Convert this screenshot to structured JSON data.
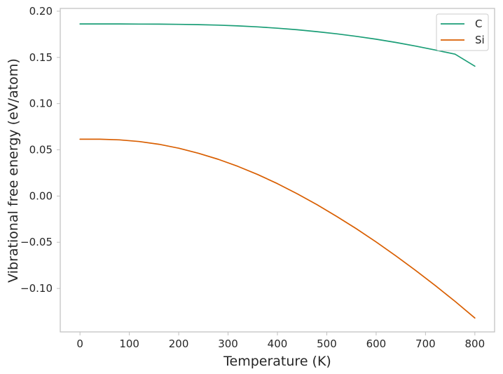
{
  "chart_data": {
    "type": "line",
    "xlabel": "Temperature (K)",
    "ylabel": "Vibrational free energy (eV/atom)",
    "xlim": [
      -40,
      840
    ],
    "ylim": [
      -0.147,
      0.203
    ],
    "xticks": [
      0,
      100,
      200,
      300,
      400,
      500,
      600,
      700,
      800
    ],
    "xtick_labels": [
      "0",
      "100",
      "200",
      "300",
      "400",
      "500",
      "600",
      "700",
      "800"
    ],
    "yticks": [
      -0.1,
      -0.05,
      0.0,
      0.05,
      0.1,
      0.15,
      0.2
    ],
    "ytick_labels": [
      "−0.10",
      "−0.05",
      "0.00",
      "0.05",
      "0.10",
      "0.15",
      "0.20"
    ],
    "grid": false,
    "legend_position": "top-right",
    "x": [
      0,
      40,
      80,
      120,
      160,
      200,
      240,
      280,
      320,
      360,
      400,
      440,
      480,
      520,
      560,
      600,
      640,
      680,
      720,
      760,
      800
    ],
    "series": [
      {
        "name": "C",
        "color": "#1b9e77",
        "values": [
          0.1862,
          0.1862,
          0.1862,
          0.1861,
          0.186,
          0.1858,
          0.1855,
          0.1849,
          0.1841,
          0.183,
          0.1816,
          0.1799,
          0.1779,
          0.1755,
          0.1728,
          0.1697,
          0.1662,
          0.1622,
          0.158,
          0.1535,
          0.1405
        ]
      },
      {
        "name": "Si",
        "color": "#d95f02",
        "values": [
          0.0615,
          0.0615,
          0.0608,
          0.059,
          0.056,
          0.0518,
          0.0463,
          0.0398,
          0.0321,
          0.0233,
          0.0134,
          0.0025,
          -0.0093,
          -0.022,
          -0.0354,
          -0.0497,
          -0.0648,
          -0.0805,
          -0.097,
          -0.114,
          -0.132
        ]
      }
    ]
  }
}
